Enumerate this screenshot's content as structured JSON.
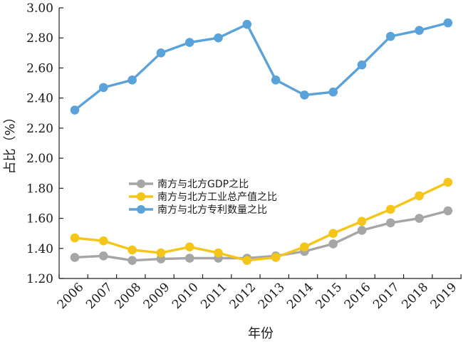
{
  "chart_data": {
    "type": "line",
    "xlabel": "年份",
    "ylabel": "占比（%）",
    "ylim": [
      1.2,
      3.0
    ],
    "yticks": [
      "1.20",
      "1.40",
      "1.60",
      "1.80",
      "2.00",
      "2.20",
      "2.40",
      "2.60",
      "2.80",
      "3.00"
    ],
    "categories": [
      "2006",
      "2007",
      "2008",
      "2009",
      "2010",
      "2011",
      "2012",
      "2013",
      "2014",
      "2015",
      "2016",
      "2017",
      "2018",
      "2019"
    ],
    "grid": false,
    "legend_position": "center-left",
    "series": [
      {
        "name": "南方与北方GDP之比",
        "color": "#a6a6a6",
        "values": [
          1.34,
          1.35,
          1.32,
          1.33,
          1.335,
          1.335,
          1.335,
          1.35,
          1.38,
          1.43,
          1.52,
          1.57,
          1.6,
          1.65
        ]
      },
      {
        "name": "南方与北方工业总产值之比",
        "color": "#f5c518",
        "values": [
          1.47,
          1.45,
          1.39,
          1.37,
          1.41,
          1.37,
          1.32,
          1.34,
          1.41,
          1.5,
          1.58,
          1.66,
          1.75,
          1.84
        ]
      },
      {
        "name": "南方与北方专利数量之比",
        "color": "#5aa2da",
        "values": [
          2.32,
          2.47,
          2.52,
          2.7,
          2.77,
          2.8,
          2.89,
          2.52,
          2.42,
          2.44,
          2.62,
          2.81,
          2.85,
          2.9
        ]
      }
    ]
  }
}
